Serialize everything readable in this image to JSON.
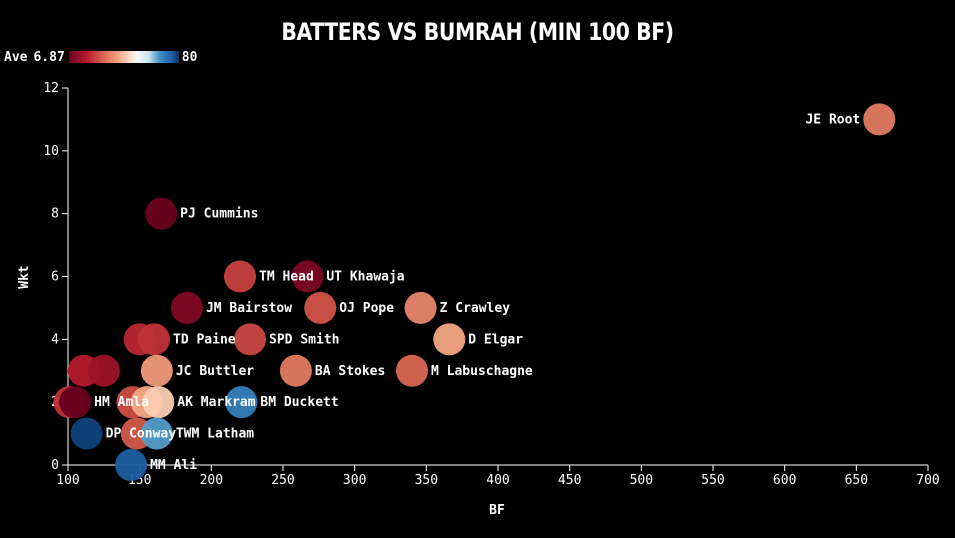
{
  "chart_data": {
    "type": "scatter",
    "title": "BATTERS VS BUMRAH (MIN 100 BF)",
    "xlabel": "BF",
    "ylabel": "Wkt",
    "xlim": [
      100,
      700
    ],
    "ylim": [
      0,
      12
    ],
    "xticks": [
      100,
      150,
      200,
      250,
      300,
      350,
      400,
      450,
      500,
      550,
      600,
      650,
      700
    ],
    "yticks": [
      0,
      2,
      4,
      6,
      8,
      10,
      12
    ],
    "color_legend": {
      "label": "Ave",
      "min": 6.87,
      "max": 80,
      "min_label": "6.87",
      "max_label": "80"
    },
    "colors": {
      "low": "#67001f",
      "mid": "#f7f7f7",
      "high": "#053061",
      "background": "#000000",
      "text": "#ffffff"
    },
    "points": [
      {
        "name": "",
        "bf": 101,
        "wkt": 2,
        "ave": 22
      },
      {
        "name": "",
        "bf": 111,
        "wkt": 3,
        "ave": 18
      },
      {
        "name": "",
        "bf": 125,
        "wkt": 3,
        "ave": 15
      },
      {
        "name": "HM Amla",
        "bf": 105,
        "wkt": 2,
        "ave": 6.87
      },
      {
        "name": "DP Conway",
        "bf": 113,
        "wkt": 1,
        "ave": 78
      },
      {
        "name": "",
        "bf": 145,
        "wkt": 2,
        "ave": 26
      },
      {
        "name": "",
        "bf": 148,
        "wkt": 1,
        "ave": 28
      },
      {
        "name": "",
        "bf": 150,
        "wkt": 4,
        "ave": 20
      },
      {
        "name": "",
        "bf": 155,
        "wkt": 2,
        "ave": 40
      },
      {
        "name": "AK Markram",
        "bf": 163,
        "wkt": 2,
        "ave": 45
      },
      {
        "name": "TWM Latham",
        "bf": 162,
        "wkt": 1,
        "ave": 66
      },
      {
        "name": "TD Paine",
        "bf": 160,
        "wkt": 4,
        "ave": 22
      },
      {
        "name": "PJ Cummins",
        "bf": 165,
        "wkt": 8,
        "ave": 7.5
      },
      {
        "name": "JC Buttler",
        "bf": 162,
        "wkt": 3,
        "ave": 38
      },
      {
        "name": "MM Ali",
        "bf": 144,
        "wkt": 0,
        "ave": 75
      },
      {
        "name": "JM Bairstow",
        "bf": 183,
        "wkt": 5,
        "ave": 11
      },
      {
        "name": "TM Head",
        "bf": 220,
        "wkt": 6,
        "ave": 24
      },
      {
        "name": "BM Duckett",
        "bf": 221,
        "wkt": 2,
        "ave": 70
      },
      {
        "name": "SPD Smith",
        "bf": 227,
        "wkt": 4,
        "ave": 25
      },
      {
        "name": "BA Stokes",
        "bf": 259,
        "wkt": 3,
        "ave": 33
      },
      {
        "name": "UT Khawaja",
        "bf": 267,
        "wkt": 6,
        "ave": 10
      },
      {
        "name": "OJ Pope",
        "bf": 276,
        "wkt": 5,
        "ave": 27
      },
      {
        "name": "M Labuschagne",
        "bf": 340,
        "wkt": 3,
        "ave": 30
      },
      {
        "name": "Z Crawley",
        "bf": 346,
        "wkt": 5,
        "ave": 35
      },
      {
        "name": "D Elgar",
        "bf": 366,
        "wkt": 4,
        "ave": 40
      },
      {
        "name": "JE Root",
        "bf": 666,
        "wkt": 11,
        "ave": 33
      }
    ]
  }
}
